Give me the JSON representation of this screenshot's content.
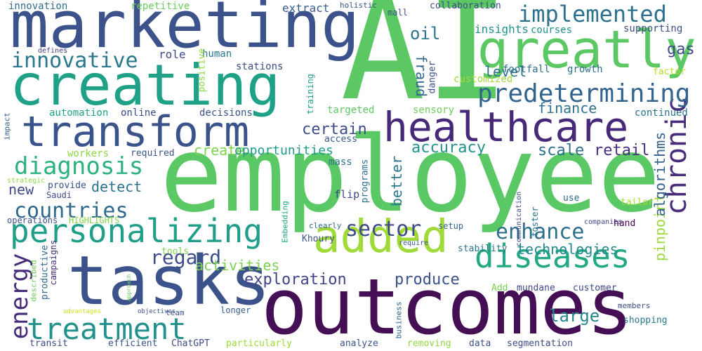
{
  "words": [
    {
      "text": "AI",
      "color": "#5cc863"
    },
    {
      "text": "employee",
      "color": "#5ac864"
    },
    {
      "text": "outcomes",
      "color": "#440f54"
    },
    {
      "text": "marketing",
      "color": "#3b528b"
    },
    {
      "text": "creating",
      "color": "#1fa187"
    },
    {
      "text": "greatly",
      "color": "#5cc863"
    },
    {
      "text": "tasks",
      "color": "#3b528b"
    },
    {
      "text": "transform",
      "color": "#3a538b"
    },
    {
      "text": "healthcare",
      "color": "#482878"
    },
    {
      "text": "added",
      "color": "#a0da39"
    },
    {
      "text": "diseases",
      "color": "#22a884"
    },
    {
      "text": "personalizing",
      "color": "#1f9e89"
    },
    {
      "text": "chronic",
      "color": "#472d7b"
    },
    {
      "text": "predetermining",
      "color": "#32648e"
    },
    {
      "text": "implemented",
      "color": "#2c728e"
    },
    {
      "text": "treatment",
      "color": "#21918c"
    },
    {
      "text": "innovative",
      "color": "#2a788e"
    },
    {
      "text": "diagnosis",
      "color": "#2db27d"
    },
    {
      "text": "countries",
      "color": "#31688e"
    },
    {
      "text": "enhance",
      "color": "#2e6f8e"
    },
    {
      "text": "sector",
      "color": "#3e4a89"
    },
    {
      "text": "regard",
      "color": "#3d4e8a"
    },
    {
      "text": "energy",
      "color": "#472c7a"
    },
    {
      "text": "technologies",
      "color": "#23898e"
    },
    {
      "text": "exploration",
      "color": "#414487"
    },
    {
      "text": "produce",
      "color": "#3b518b"
    },
    {
      "text": "accuracy",
      "color": "#20938c"
    },
    {
      "text": "activities",
      "color": "#7ad151"
    },
    {
      "text": "finance",
      "color": "#2c718e"
    },
    {
      "text": "certain",
      "color": "#3e4c8a"
    },
    {
      "text": "scale",
      "color": "#2d708e"
    },
    {
      "text": "retail",
      "color": "#472f7d"
    },
    {
      "text": "large",
      "color": "#24878e"
    },
    {
      "text": "level",
      "color": "#2c738e"
    },
    {
      "text": "oil",
      "color": "#2a768e"
    },
    {
      "text": "gas",
      "color": "#3f4889"
    },
    {
      "text": "fraud",
      "color": "#31688e"
    },
    {
      "text": "detect",
      "color": "#2c728e"
    },
    {
      "text": "create",
      "color": "#7fd34e"
    },
    {
      "text": "opportunities",
      "color": "#1e9b8a"
    },
    {
      "text": "new",
      "color": "#3e4989"
    },
    {
      "text": "pinpoint",
      "color": "#9bd93c"
    },
    {
      "text": "algorithms",
      "color": "#33638d"
    },
    {
      "text": "better",
      "color": "#2a788e"
    },
    {
      "text": "innovation",
      "color": "#2e6e8e"
    },
    {
      "text": "repetitive",
      "color": "#6ccd5a"
    },
    {
      "text": "extract",
      "color": "#365d8d"
    },
    {
      "text": "holistic",
      "color": "#3b528b"
    },
    {
      "text": "mall",
      "color": "#3b518b"
    },
    {
      "text": "collaboration",
      "color": "#3d4d8a"
    },
    {
      "text": "insights",
      "color": "#21918c"
    },
    {
      "text": "courses",
      "color": "#21918c"
    },
    {
      "text": "supporting",
      "color": "#3c4f8a"
    },
    {
      "text": "role",
      "color": "#3f4889"
    },
    {
      "text": "human",
      "color": "#2a768e"
    },
    {
      "text": "positive",
      "color": "#8fd744"
    },
    {
      "text": "defines",
      "color": "#433e85"
    },
    {
      "text": "stations",
      "color": "#3d4e8a"
    },
    {
      "text": "danger",
      "color": "#3b518b"
    },
    {
      "text": "customized",
      "color": "#a2da37"
    },
    {
      "text": "footfall",
      "color": "#2e6f8e"
    },
    {
      "text": "growth",
      "color": "#2d708e"
    },
    {
      "text": "factor",
      "color": "#b5de2b"
    },
    {
      "text": "impact",
      "color": "#365d8d"
    },
    {
      "text": "automation",
      "color": "#20a486"
    },
    {
      "text": "online",
      "color": "#3e4a89"
    },
    {
      "text": "decisions",
      "color": "#3b528b"
    },
    {
      "text": "training",
      "color": "#1f9e89"
    },
    {
      "text": "targeted",
      "color": "#5ec962"
    },
    {
      "text": "sensory",
      "color": "#6ece58"
    },
    {
      "text": "continued",
      "color": "#2c728e"
    },
    {
      "text": "workers",
      "color": "#8fd744"
    },
    {
      "text": "required",
      "color": "#3b528b"
    },
    {
      "text": "access",
      "color": "#38598c"
    },
    {
      "text": "mass",
      "color": "#2c718e"
    },
    {
      "text": "strategic",
      "color": "#8fd744"
    },
    {
      "text": "provide",
      "color": "#3d4e8a"
    },
    {
      "text": "Saudi",
      "color": "#3e4a89"
    },
    {
      "text": "flip",
      "color": "#404688"
    },
    {
      "text": "programs",
      "color": "#2c718e"
    },
    {
      "text": "Embedding",
      "color": "#22a884"
    },
    {
      "text": "communication",
      "color": "#3e4989"
    },
    {
      "text": "use",
      "color": "#31688e"
    },
    {
      "text": "tailor",
      "color": "#a8db34"
    },
    {
      "text": "HIGHLIGHTS",
      "color": "#84d44b"
    },
    {
      "text": "operations",
      "color": "#3b528b"
    },
    {
      "text": "campaigns",
      "color": "#46327e"
    },
    {
      "text": "clearly",
      "color": "#31688e"
    },
    {
      "text": "companies",
      "color": "#3f4889"
    },
    {
      "text": "setup",
      "color": "#33638d"
    },
    {
      "text": "hand",
      "color": "#440154"
    },
    {
      "text": "foster",
      "color": "#2a788e"
    },
    {
      "text": "require",
      "color": "#3b528b"
    },
    {
      "text": "Khoury",
      "color": "#3b528b"
    },
    {
      "text": "tools",
      "color": "#7ad151"
    },
    {
      "text": "stability",
      "color": "#2a768e"
    },
    {
      "text": "productive",
      "color": "#31688e"
    },
    {
      "text": "described",
      "color": "#6ece58"
    },
    {
      "text": "approach",
      "color": "#6ccd5a"
    },
    {
      "text": "advantages",
      "color": "#d2e21b"
    },
    {
      "text": "objectives",
      "color": "#3b528b"
    },
    {
      "text": "Add",
      "color": "#7ad151"
    },
    {
      "text": "mundane",
      "color": "#3f4889"
    },
    {
      "text": "customer",
      "color": "#3e4a89"
    },
    {
      "text": "members",
      "color": "#3d4e8a"
    },
    {
      "text": "team",
      "color": "#3b528b"
    },
    {
      "text": "longer",
      "color": "#365d8d"
    },
    {
      "text": "shopping",
      "color": "#2a788e"
    },
    {
      "text": "business",
      "color": "#31688e"
    },
    {
      "text": "transit",
      "color": "#3d4e8a"
    },
    {
      "text": "efficient",
      "color": "#3b528b"
    },
    {
      "text": "ChatGPT",
      "color": "#3e4989"
    },
    {
      "text": "particularly",
      "color": "#a0da39"
    },
    {
      "text": "analyze",
      "color": "#3b528b"
    },
    {
      "text": "removing",
      "color": "#8fd744"
    },
    {
      "text": "data",
      "color": "#3b528b"
    },
    {
      "text": "segmentation",
      "color": "#3e4a89"
    }
  ]
}
